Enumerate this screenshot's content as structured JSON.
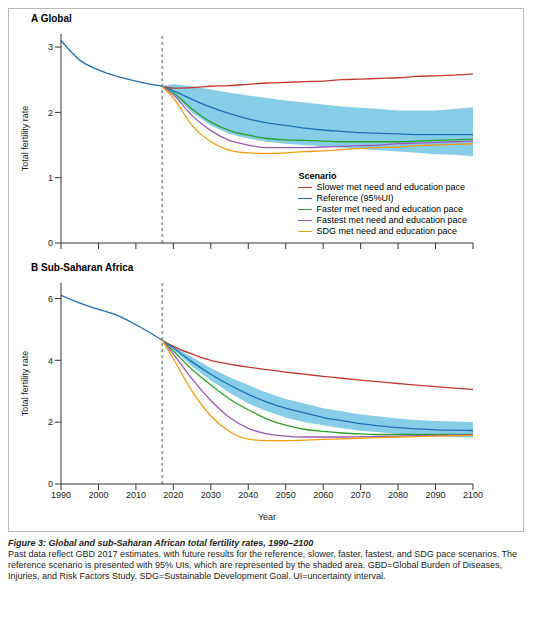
{
  "chart_data": [
    {
      "type": "line",
      "title": "A Global",
      "ylabel": "Total fertility rate",
      "x": [
        1990,
        1995,
        2000,
        2005,
        2010,
        2015,
        2017,
        2020,
        2025,
        2030,
        2035,
        2040,
        2045,
        2050,
        2055,
        2060,
        2065,
        2070,
        2075,
        2080,
        2085,
        2090,
        2095,
        2100
      ],
      "xlim": [
        1990,
        2100
      ],
      "xticks": [
        1990,
        2000,
        2010,
        2020,
        2030,
        2040,
        2050,
        2060,
        2070,
        2080,
        2090,
        2100
      ],
      "ylim": [
        0,
        3.2
      ],
      "yticks": [
        0,
        1,
        2,
        3
      ],
      "grid": false,
      "tick_labels": "y",
      "legend": "lower right",
      "legend_title": "Scenario",
      "reference_x": 2017,
      "series": [
        {
          "name": "Slower met need and education pace",
          "color": "#c0392b",
          "values": [
            null,
            null,
            null,
            null,
            null,
            null,
            2.4,
            2.37,
            2.38,
            2.4,
            2.41,
            2.43,
            2.45,
            2.46,
            2.47,
            2.48,
            2.5,
            2.51,
            2.52,
            2.53,
            2.55,
            2.56,
            2.57,
            2.59
          ]
        },
        {
          "name": "Reference (95%UI)",
          "color": "#1f6fb5",
          "values": [
            3.1,
            2.8,
            2.65,
            2.55,
            2.48,
            2.42,
            2.4,
            2.33,
            2.2,
            2.08,
            1.98,
            1.9,
            1.84,
            1.8,
            1.76,
            1.73,
            1.71,
            1.69,
            1.68,
            1.67,
            1.66,
            1.66,
            1.66,
            1.66
          ],
          "lower": [
            null,
            null,
            null,
            null,
            null,
            null,
            2.4,
            2.28,
            2.0,
            1.8,
            1.67,
            1.6,
            1.55,
            1.52,
            1.5,
            1.48,
            1.46,
            1.44,
            1.42,
            1.4,
            1.38,
            1.36,
            1.35,
            1.33
          ],
          "upper": [
            null,
            null,
            null,
            null,
            null,
            null,
            2.4,
            2.43,
            2.4,
            2.35,
            2.3,
            2.26,
            2.22,
            2.18,
            2.15,
            2.12,
            2.09,
            2.07,
            2.05,
            2.03,
            2.03,
            2.03,
            2.05,
            2.08
          ]
        },
        {
          "name": "Faster met need and education pace",
          "color": "#2ca02c",
          "values": [
            null,
            null,
            null,
            null,
            null,
            null,
            2.4,
            2.3,
            2.05,
            1.85,
            1.72,
            1.65,
            1.6,
            1.58,
            1.57,
            1.56,
            1.55,
            1.55,
            1.55,
            1.55,
            1.56,
            1.57,
            1.58,
            1.59
          ]
        },
        {
          "name": "Fastest met need and education pace",
          "color": "#9b59b6",
          "values": [
            null,
            null,
            null,
            null,
            null,
            null,
            2.4,
            2.27,
            1.95,
            1.72,
            1.57,
            1.5,
            1.46,
            1.46,
            1.46,
            1.47,
            1.48,
            1.49,
            1.5,
            1.52,
            1.53,
            1.54,
            1.55,
            1.56
          ]
        },
        {
          "name": "SDG met need and education pace",
          "color": "#f39c12",
          "values": [
            null,
            null,
            null,
            null,
            null,
            null,
            2.4,
            2.22,
            1.8,
            1.55,
            1.42,
            1.38,
            1.37,
            1.38,
            1.4,
            1.41,
            1.43,
            1.45,
            1.46,
            1.47,
            1.49,
            1.5,
            1.51,
            1.52
          ]
        }
      ]
    },
    {
      "type": "line",
      "title": "B Sub-Saharan Africa",
      "xlabel": "Year",
      "ylabel": "Total fertility rate",
      "x": [
        1990,
        1995,
        2000,
        2005,
        2010,
        2015,
        2017,
        2020,
        2025,
        2030,
        2035,
        2040,
        2045,
        2050,
        2055,
        2060,
        2065,
        2070,
        2075,
        2080,
        2085,
        2090,
        2095,
        2100
      ],
      "xlim": [
        1990,
        2100
      ],
      "xticks": [
        1990,
        2000,
        2010,
        2020,
        2030,
        2040,
        2050,
        2060,
        2070,
        2080,
        2090,
        2100
      ],
      "ylim": [
        0,
        6.5
      ],
      "yticks": [
        0,
        2,
        4,
        6
      ],
      "grid": false,
      "reference_x": 2017,
      "series": [
        {
          "name": "Slower met need and education pace",
          "color": "#c0392b",
          "values": [
            null,
            null,
            null,
            null,
            null,
            null,
            4.65,
            4.45,
            4.2,
            4.0,
            3.88,
            3.78,
            3.7,
            3.62,
            3.55,
            3.48,
            3.42,
            3.36,
            3.3,
            3.25,
            3.2,
            3.15,
            3.1,
            3.06
          ]
        },
        {
          "name": "Reference (95%UI)",
          "color": "#1f6fb5",
          "values": [
            6.1,
            5.85,
            5.65,
            5.45,
            5.15,
            4.8,
            4.65,
            4.4,
            3.95,
            3.55,
            3.2,
            2.9,
            2.65,
            2.45,
            2.3,
            2.15,
            2.05,
            1.95,
            1.88,
            1.82,
            1.78,
            1.75,
            1.74,
            1.73
          ],
          "lower": [
            null,
            null,
            null,
            null,
            null,
            null,
            4.65,
            4.35,
            3.8,
            3.35,
            2.95,
            2.6,
            2.35,
            2.15,
            2.0,
            1.9,
            1.8,
            1.72,
            1.67,
            1.62,
            1.58,
            1.55,
            1.52,
            1.5
          ],
          "upper": [
            null,
            null,
            null,
            null,
            null,
            null,
            4.65,
            4.45,
            4.1,
            3.75,
            3.45,
            3.2,
            2.95,
            2.75,
            2.6,
            2.45,
            2.35,
            2.25,
            2.18,
            2.12,
            2.07,
            2.04,
            2.02,
            2.0
          ]
        },
        {
          "name": "Faster met need and education pace",
          "color": "#2ca02c",
          "values": [
            null,
            null,
            null,
            null,
            null,
            null,
            4.65,
            4.3,
            3.7,
            3.2,
            2.75,
            2.4,
            2.1,
            1.9,
            1.77,
            1.7,
            1.65,
            1.62,
            1.6,
            1.6,
            1.6,
            1.6,
            1.6,
            1.61
          ]
        },
        {
          "name": "Fastest met need and education pace",
          "color": "#9b59b6",
          "values": [
            null,
            null,
            null,
            null,
            null,
            null,
            4.65,
            4.2,
            3.4,
            2.7,
            2.15,
            1.8,
            1.62,
            1.55,
            1.52,
            1.52,
            1.52,
            1.53,
            1.54,
            1.55,
            1.56,
            1.57,
            1.58,
            1.59
          ]
        },
        {
          "name": "SDG met need and education pace",
          "color": "#f39c12",
          "values": [
            null,
            null,
            null,
            null,
            null,
            null,
            4.65,
            4.05,
            3.0,
            2.2,
            1.7,
            1.45,
            1.4,
            1.4,
            1.42,
            1.44,
            1.46,
            1.48,
            1.5,
            1.52,
            1.53,
            1.55,
            1.56,
            1.57
          ]
        }
      ]
    }
  ],
  "caption": {
    "title": "Figure 3: Global and sub-Saharan African total fertility rates, 1990–2100",
    "text": "Past data reflect GBD 2017 estimates, with future results for the reference, slower, faster, fastest, and SDG pace scenarios. The reference scenario is presented with 95% UIs, which are represented by the shaded area. GBD=Global Burden of Diseases, Injuries, and Risk Factors Study. SDG=Sustainable Development Goal. UI=uncertainty interval."
  }
}
